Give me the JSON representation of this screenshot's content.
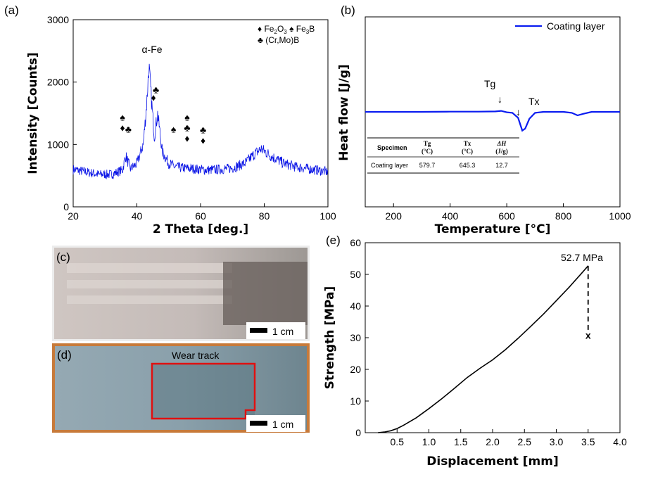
{
  "panels": {
    "a": "(a)",
    "b": "(b)",
    "c": "(c)",
    "d": "(d)",
    "e": "(e)"
  },
  "colors": {
    "xrd": "#0a14e6",
    "dsc": "#0a1cf0",
    "strength": "#000000",
    "tg": "#e020e0",
    "tx": "#8b1a1a",
    "failure": "#e01010",
    "wear_box": "#e01010"
  },
  "xrd": {
    "xlabel": "2 Theta [deg.]",
    "ylabel": "Intensity [Counts]",
    "peak_label": "α-Fe",
    "legend": {
      "line1_sym": "♦",
      "fe2o3": "Fe2O3",
      "spade_sym": "♠",
      "fe3b": "Fe3B",
      "line2_sym": "♣",
      "crmob": "(Cr,Mo)B"
    },
    "markers": [
      {
        "x": 35.5,
        "y": 1380,
        "symbols": [
          "♠",
          "♦"
        ]
      },
      {
        "x": 37.3,
        "y": 1190,
        "symbols": [
          "♣"
        ]
      },
      {
        "x": 46.0,
        "y": 1820,
        "symbols": [
          "♣"
        ]
      },
      {
        "x": 45.2,
        "y": 1700,
        "symbols": [
          "♦"
        ]
      },
      {
        "x": 51.5,
        "y": 1190,
        "symbols": [
          "♠"
        ]
      },
      {
        "x": 55.8,
        "y": 1380,
        "symbols": [
          "♠",
          "♣",
          "♦"
        ]
      },
      {
        "x": 60.8,
        "y": 1180,
        "symbols": [
          "♣",
          "♦"
        ]
      }
    ]
  },
  "dsc": {
    "xlabel": "Temperature [°C]",
    "ylabel": "Heat flow [J/g]",
    "legend": "Coating layer",
    "tg_label": "Tg",
    "tx_label": "Tx",
    "arrow": "↓",
    "table": {
      "headers": [
        "Specimen",
        "Tg",
        "Tx",
        "ΔH"
      ],
      "units": [
        "",
        "(°C)",
        "(°C)",
        "(J/g)"
      ],
      "row": [
        "Coating layer",
        "579.7",
        "645.3",
        "12.7"
      ]
    }
  },
  "photos": {
    "c_scale": "1 cm",
    "d_scale": "1 cm",
    "wear_label": "Wear track"
  },
  "strength": {
    "xlabel": "Displacement [mm]",
    "ylabel": "Strength [MPa]",
    "peak_label": "52.7 MPa",
    "fail_marker": "x"
  },
  "chart_data": [
    {
      "type": "line",
      "panel": "(a)",
      "xlabel": "2 Theta [deg.]",
      "ylabel": "Intensity [Counts]",
      "xlim": [
        20,
        100
      ],
      "ylim": [
        0,
        3000
      ],
      "xticks": [
        20,
        40,
        60,
        80,
        100
      ],
      "yticks": [
        0,
        1000,
        2000,
        3000
      ],
      "series": [
        {
          "x": [
            20,
            24,
            28,
            32,
            35.5,
            36.5,
            38,
            40,
            42,
            43,
            43.8,
            44.6,
            45.5,
            46.5,
            48,
            50,
            52,
            55,
            58,
            62,
            66,
            70,
            74,
            77,
            79,
            82,
            86,
            90,
            95,
            100
          ],
          "y": [
            600,
            560,
            520,
            520,
            590,
            820,
            610,
            690,
            1000,
            1600,
            2250,
            1700,
            1120,
            1500,
            880,
            700,
            640,
            620,
            610,
            590,
            600,
            620,
            700,
            850,
            930,
            820,
            700,
            640,
            600,
            560
          ]
        }
      ]
    },
    {
      "type": "line",
      "panel": "(b)",
      "xlabel": "Temperature [°C]",
      "ylabel": "Heat flow [J/g]",
      "xlim": [
        100,
        1000
      ],
      "xticks": [
        200,
        400,
        600,
        800,
        1000
      ],
      "series": [
        {
          "name": "Coating layer",
          "x": [
            100,
            200,
            300,
            400,
            500,
            560,
            580,
            600,
            620,
            640,
            655,
            665,
            680,
            700,
            730,
            770,
            800,
            830,
            850,
            870,
            900,
            1000
          ],
          "y": [
            0,
            0,
            0,
            0.01,
            0.01,
            0.02,
            0.05,
            -0.02,
            -0.05,
            -0.3,
            -0.95,
            -0.85,
            -0.35,
            -0.05,
            0,
            0,
            0,
            -0.05,
            -0.18,
            -0.1,
            0,
            0
          ]
        }
      ]
    },
    {
      "type": "line",
      "panel": "(e)",
      "xlabel": "Displacement [mm]",
      "ylabel": "Strength [MPa]",
      "xlim": [
        0,
        4.0
      ],
      "ylim": [
        0,
        60
      ],
      "xticks": [
        0.5,
        1.0,
        1.5,
        2.0,
        2.5,
        3.0,
        3.5,
        4.0
      ],
      "yticks": [
        0,
        10,
        20,
        30,
        40,
        50,
        60
      ],
      "series": [
        {
          "x": [
            0.2,
            0.3,
            0.4,
            0.5,
            0.6,
            0.8,
            1.0,
            1.2,
            1.4,
            1.6,
            1.8,
            2.0,
            2.2,
            2.4,
            2.6,
            2.8,
            3.0,
            3.2,
            3.4,
            3.5
          ],
          "y": [
            0,
            0.2,
            0.6,
            1.3,
            2.3,
            4.7,
            7.6,
            10.7,
            14.0,
            17.4,
            20.3,
            23.0,
            26.2,
            29.8,
            33.6,
            37.5,
            41.7,
            45.9,
            50.4,
            52.7
          ]
        }
      ],
      "failure": {
        "x": 3.5,
        "y_from": 52.7,
        "y_to": 31
      }
    }
  ]
}
